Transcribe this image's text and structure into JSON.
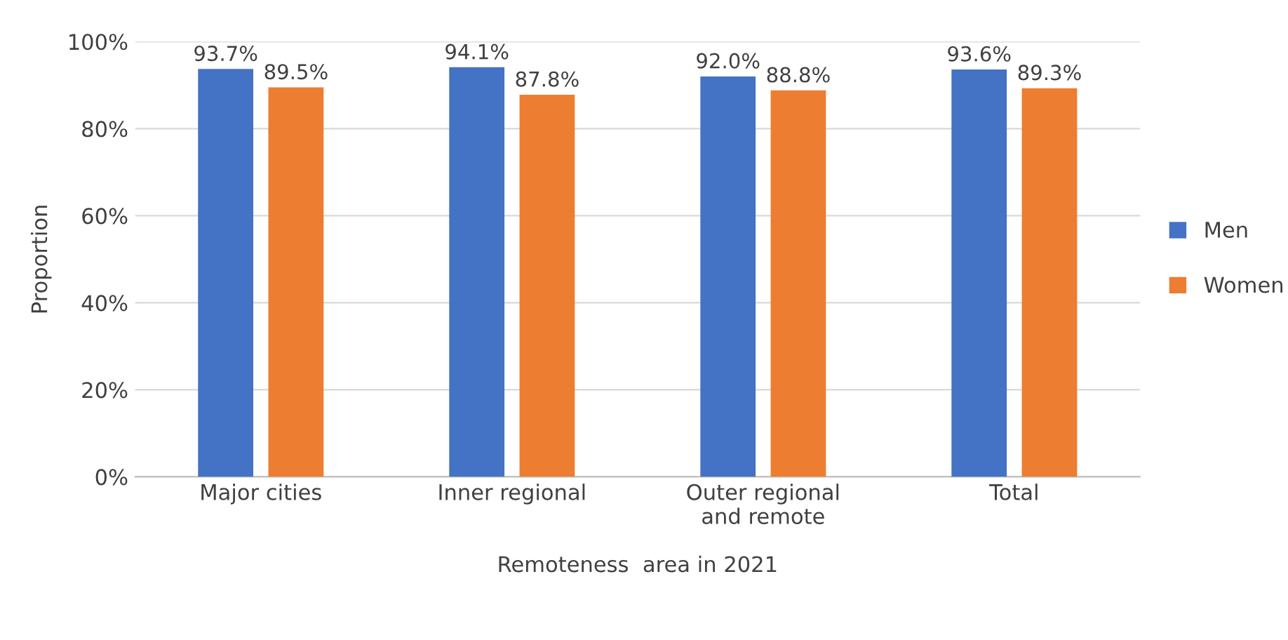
{
  "chart_data": {
    "type": "bar",
    "xlabel": "Remoteness  area in 2021",
    "ylabel": "Proportion",
    "categories": [
      "Major cities",
      "Inner regional",
      "Outer regional\nand remote",
      "Total"
    ],
    "series": [
      {
        "name": "Men",
        "color": "#4472c4",
        "values": [
          93.7,
          94.1,
          92.0,
          93.6
        ],
        "value_labels": [
          "93.7%",
          "94.1%",
          "92.0%",
          "93.6%"
        ]
      },
      {
        "name": "Women",
        "color": "#ed7d31",
        "values": [
          89.5,
          87.8,
          88.8,
          89.3
        ],
        "value_labels": [
          "89.5%",
          "87.8%",
          "88.8%",
          "89.3%"
        ]
      }
    ],
    "ylim": [
      0,
      100
    ],
    "yticks": [
      {
        "value": 0,
        "label": "0%"
      },
      {
        "value": 20,
        "label": "20%"
      },
      {
        "value": 40,
        "label": "40%"
      },
      {
        "value": 60,
        "label": "60%"
      },
      {
        "value": 80,
        "label": "80%"
      },
      {
        "value": 100,
        "label": "100%"
      }
    ],
    "grid": "y",
    "legend": "right"
  }
}
